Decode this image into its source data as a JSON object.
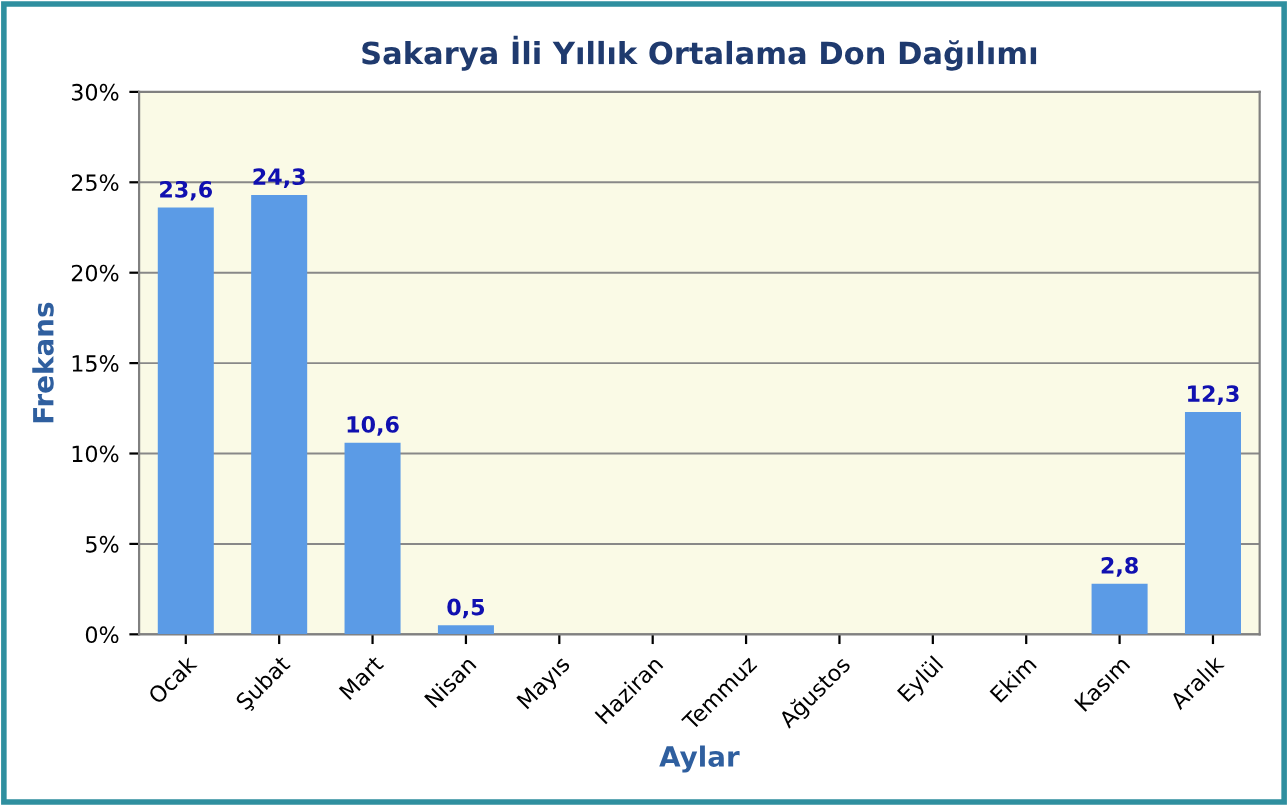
{
  "chart_data": {
    "type": "bar",
    "title": "Sakarya İli Yıllık Ortalama Don Dağılımı",
    "xlabel": "Aylar",
    "ylabel": "Frekans",
    "categories": [
      "Ocak",
      "Şubat",
      "Mart",
      "Nisan",
      "Mayıs",
      "Haziran",
      "Temmuz",
      "Ağustos",
      "Eylül",
      "Ekim",
      "Kasım",
      "Aralık"
    ],
    "values": [
      23.6,
      24.3,
      10.6,
      0.5,
      0,
      0,
      0,
      0,
      0,
      0,
      2.8,
      12.3
    ],
    "value_labels": [
      "23,6",
      "24,3",
      "10,6",
      "0,5",
      null,
      null,
      null,
      null,
      null,
      null,
      "2,8",
      "12,3"
    ],
    "color": "#5b9be6",
    "ylim": [
      0,
      30
    ],
    "yticks": [
      {
        "value": 0,
        "label": "0%"
      },
      {
        "value": 5,
        "label": "5%"
      },
      {
        "value": 10,
        "label": "10%"
      },
      {
        "value": 15,
        "label": "15%"
      },
      {
        "value": 20,
        "label": "20%"
      },
      {
        "value": 25,
        "label": "25%"
      },
      {
        "value": 30,
        "label": "30%"
      }
    ],
    "grid": "y",
    "legend": false
  }
}
